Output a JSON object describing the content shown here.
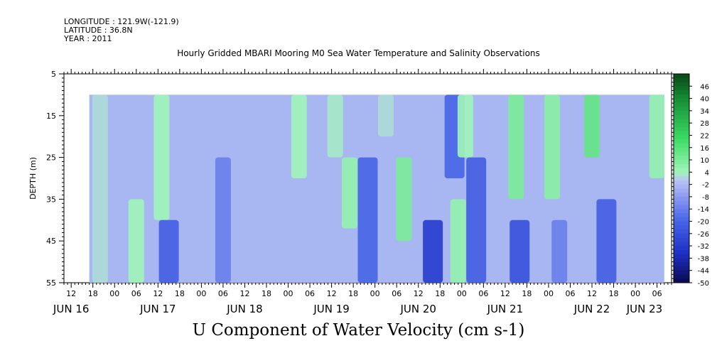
{
  "meta": {
    "longitude": "LONGITUDE : 121.9W(-121.9)",
    "latitude": "LATITUDE : 36.8N",
    "year": "YEAR : 2011"
  },
  "chart_data": {
    "type": "heatmap",
    "title": "Hourly Gridded MBARI Mooring M0 Sea Water Temperature and Salinity Observations",
    "caption": "U Component of Water Velocity (cm s-1)",
    "ylabel": "DEPTH (m)",
    "y_ticks": [
      5,
      15,
      25,
      35,
      45,
      55
    ],
    "ylim": [
      55,
      5
    ],
    "y_inverted": true,
    "hour_ticks": [
      "12",
      "18",
      "00",
      "06",
      "12",
      "18",
      "00",
      "06",
      "12",
      "18",
      "00",
      "06",
      "12",
      "18",
      "00",
      "06",
      "12",
      "18",
      "00",
      "06",
      "12",
      "18",
      "00",
      "06",
      "12",
      "18",
      "00",
      "06",
      "12",
      "18",
      "00",
      "06"
    ],
    "day_labels": [
      "JUN 16",
      "JUN 17",
      "JUN 18",
      "JUN 19",
      "JUN 20",
      "JUN 21",
      "JUN 22",
      "JUN 23"
    ],
    "x_start": "JUN 16 10:00",
    "x_end": "JUN 23 10:00",
    "data_x_start": "JUN 16 17:00",
    "data_x_end": "JUN 23 08:00",
    "data_depth_top": 10,
    "data_depth_bottom": 55,
    "colorbar": {
      "labels": [
        "46",
        "40",
        "34",
        "28",
        "22",
        "16",
        "10",
        "4",
        "-2",
        "-8",
        "-14",
        "-20",
        "-26",
        "-32",
        "-38",
        "-44",
        "-50"
      ],
      "min": -50,
      "max": 52
    },
    "colors": {
      "strong_negative": "#1a2ec4",
      "negative": "#6e86ee",
      "near_zero": "#a8b6f2",
      "positive": "#9cf2b0",
      "strong_positive": "#4fe07a"
    },
    "features": [
      {
        "time": "JUN 16 20:00",
        "depth_range": [
          10,
          55
        ],
        "u": 2
      },
      {
        "time": "JUN 17 06:00",
        "depth_range": [
          35,
          55
        ],
        "u": 4
      },
      {
        "time": "JUN 17 13:00",
        "depth_range": [
          10,
          40
        ],
        "u": 4
      },
      {
        "time": "JUN 17 15:00",
        "depth_range": [
          40,
          55
        ],
        "u": -22
      },
      {
        "time": "JUN 18 06:00",
        "depth_range": [
          25,
          55
        ],
        "u": -14
      },
      {
        "time": "JUN 19 03:00",
        "depth_range": [
          10,
          30
        ],
        "u": 4
      },
      {
        "time": "JUN 19 13:00",
        "depth_range": [
          10,
          25
        ],
        "u": 3
      },
      {
        "time": "JUN 19 17:00",
        "depth_range": [
          25,
          42
        ],
        "u": 6
      },
      {
        "time": "JUN 19 22:00",
        "depth_range": [
          25,
          55
        ],
        "u": -20
      },
      {
        "time": "JUN 20 03:00",
        "depth_range": [
          10,
          20
        ],
        "u": 2
      },
      {
        "time": "JUN 20 08:00",
        "depth_range": [
          25,
          45
        ],
        "u": 10
      },
      {
        "time": "JUN 20 16:00",
        "depth_range": [
          40,
          55
        ],
        "u": -32
      },
      {
        "time": "JUN 20 23:00",
        "depth_range": [
          35,
          55
        ],
        "u": 6
      },
      {
        "time": "JUN 20 22:00",
        "depth_range": [
          10,
          30
        ],
        "u": -20
      },
      {
        "time": "JUN 21 01:00",
        "depth_range": [
          10,
          25
        ],
        "u": 4
      },
      {
        "time": "JUN 21 04:00",
        "depth_range": [
          25,
          55
        ],
        "u": -22
      },
      {
        "time": "JUN 21 15:00",
        "depth_range": [
          10,
          35
        ],
        "u": 10
      },
      {
        "time": "JUN 21 16:00",
        "depth_range": [
          40,
          55
        ],
        "u": -26
      },
      {
        "time": "JUN 22 01:00",
        "depth_range": [
          10,
          35
        ],
        "u": 8
      },
      {
        "time": "JUN 22 03:00",
        "depth_range": [
          40,
          55
        ],
        "u": -14
      },
      {
        "time": "JUN 22 12:00",
        "depth_range": [
          10,
          25
        ],
        "u": 14
      },
      {
        "time": "JUN 22 16:00",
        "depth_range": [
          35,
          55
        ],
        "u": -22
      },
      {
        "time": "JUN 23 06:00",
        "depth_range": [
          10,
          30
        ],
        "u": 6
      }
    ]
  }
}
